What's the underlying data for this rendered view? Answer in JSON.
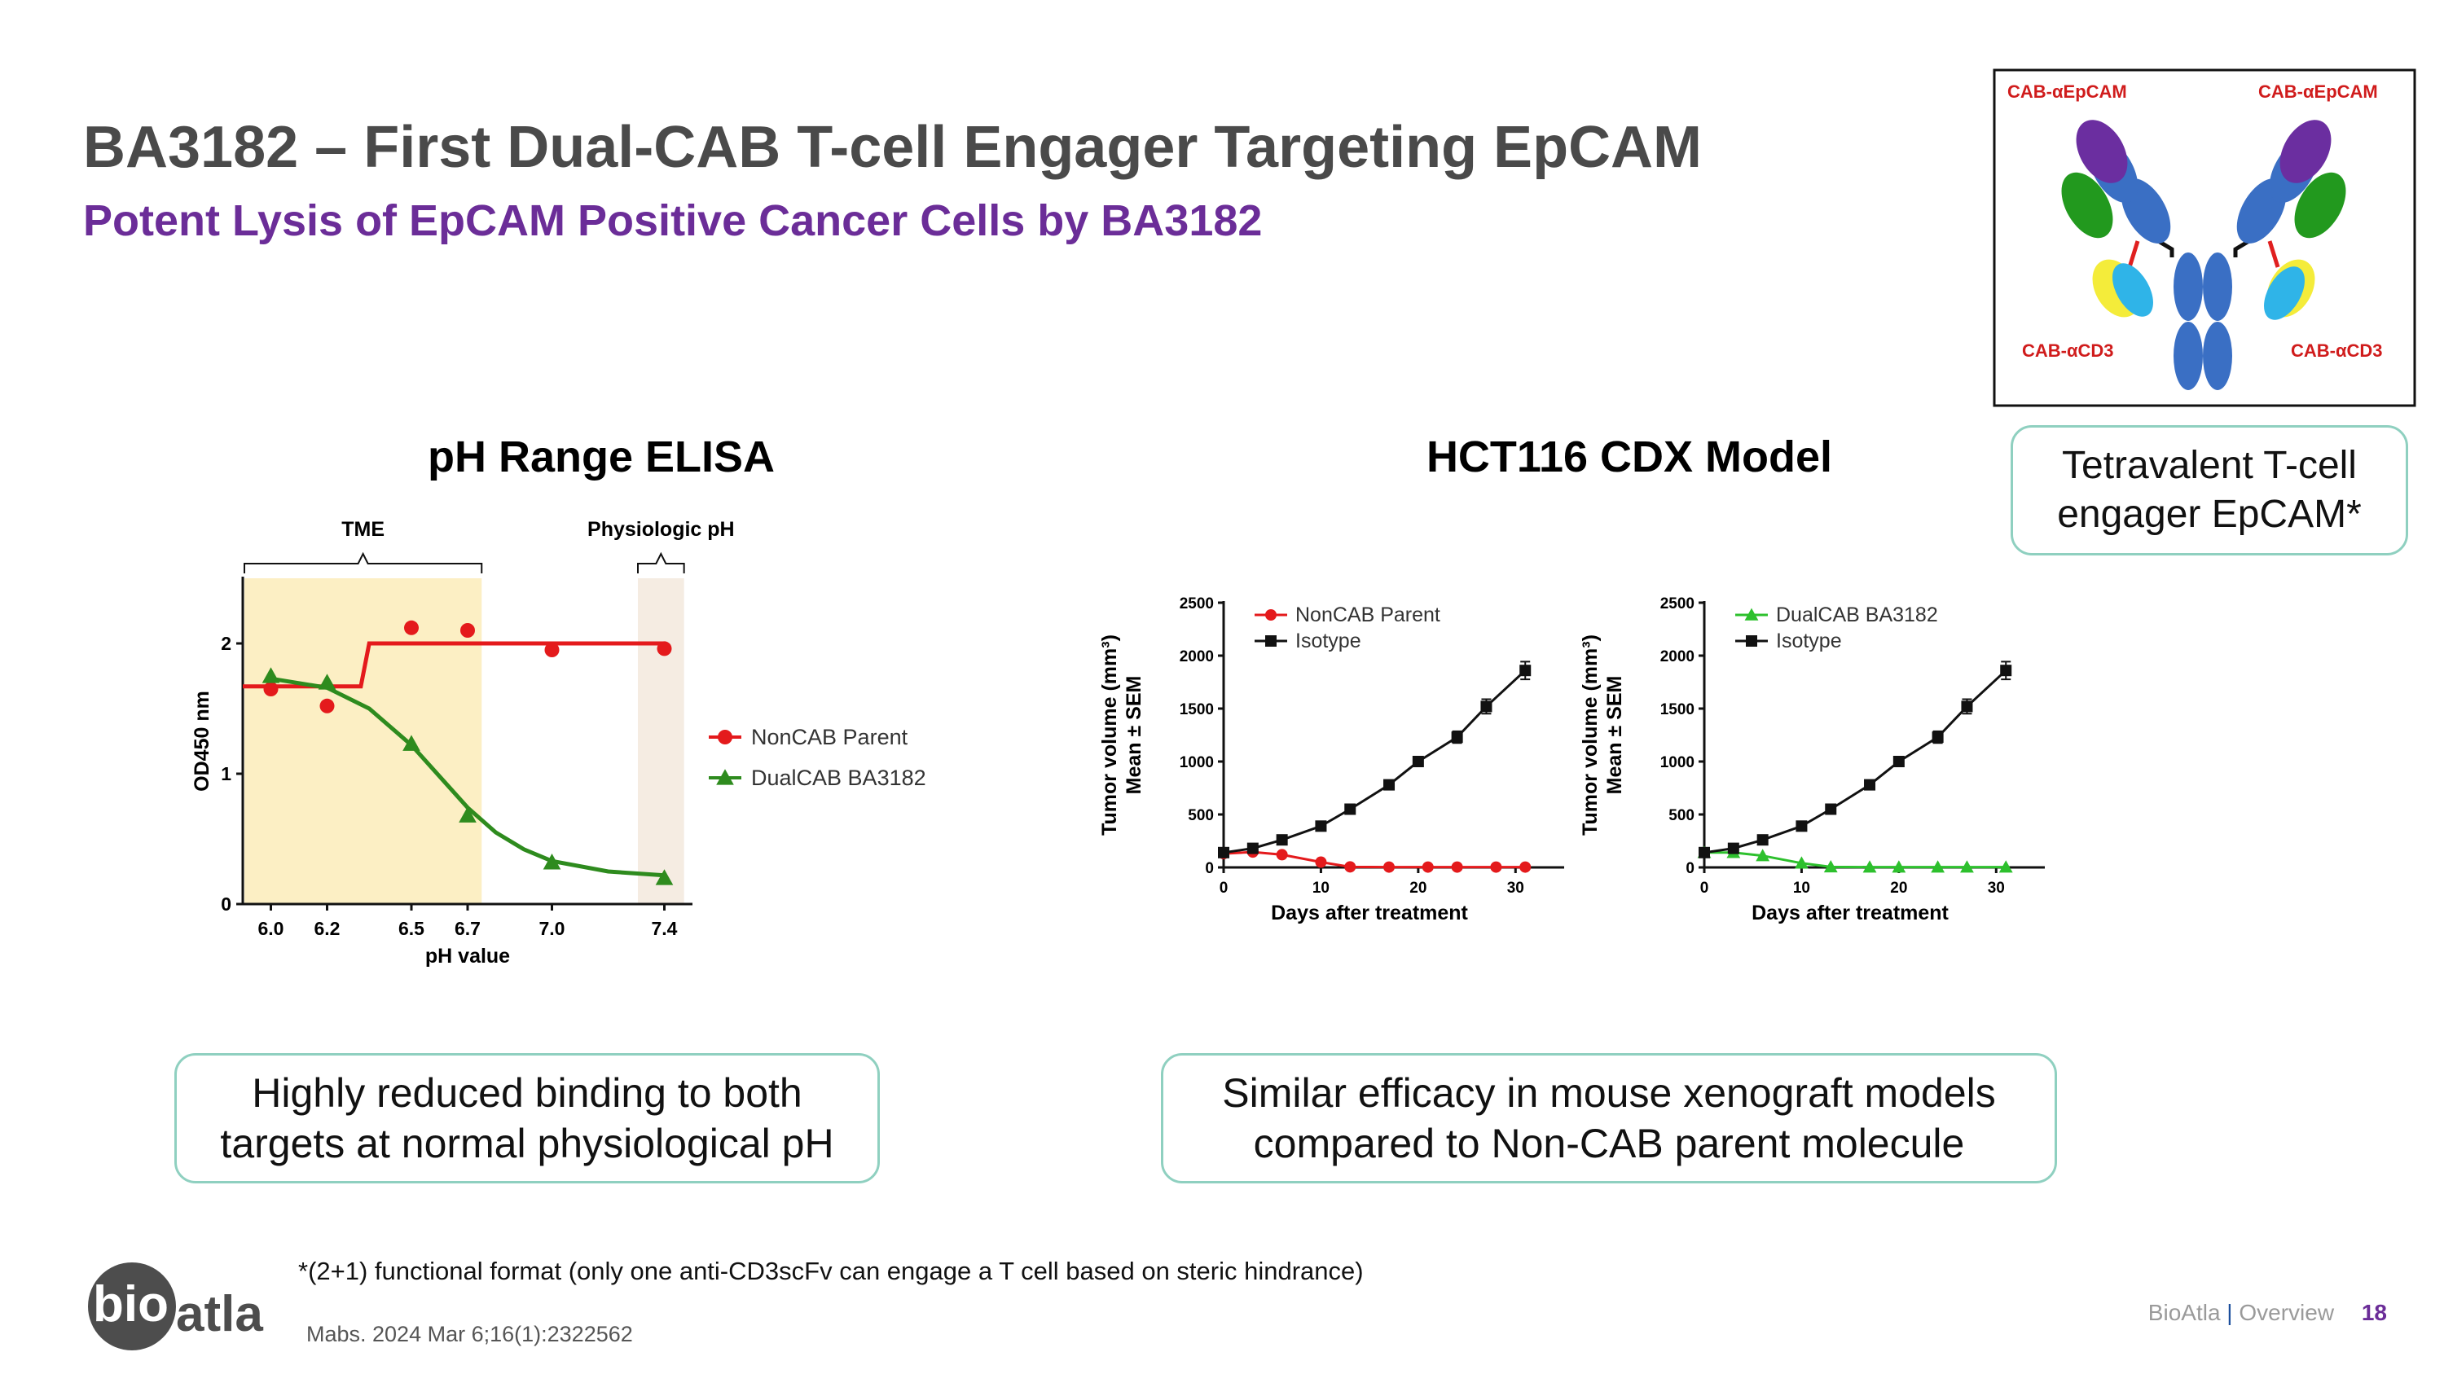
{
  "header": {
    "title": "BA3182 – First Dual-CAB T-cell Engager Targeting EpCAM",
    "subtitle": "Potent Lysis of EpCAM Positive Cancer Cells by BA3182"
  },
  "molecule": {
    "label_top_left": "CAB-αEpCAM",
    "label_top_right": "CAB-αEpCAM",
    "label_bottom_left": "CAB-αCD3",
    "label_bottom_right": "CAB-αCD3",
    "caption": "Tetravalent T-cell engager EpCAM*"
  },
  "sections": {
    "elisa_title": "pH Range ELISA",
    "cdx_title": "HCT116 CDX Model"
  },
  "callouts": {
    "left": [
      "Highly reduced binding to both",
      "targets at normal physiological pH"
    ],
    "right": [
      "Similar efficacy in mouse xenograft models",
      "compared to Non-CAB parent molecule"
    ]
  },
  "footnote": "*(2+1) functional format (only one anti-CD3scFv can engage a T cell based on steric hindrance)",
  "citation": "Mabs. 2024 Mar 6;16(1):2322562",
  "footer": {
    "brand": "BioAtla",
    "separator": "|",
    "section": "Overview",
    "page": "18"
  },
  "logo": {
    "text": "bioatla"
  },
  "colors": {
    "title": "#4a4a4a",
    "subtitle": "#6b2d98",
    "red": "#e41a1c",
    "green": "#2e8b1e",
    "lightgreen": "#2dc02d",
    "black": "#111111",
    "tme": "#fcefc4",
    "physio": "#f5ece2"
  },
  "chart_data": [
    {
      "type": "line",
      "title": "pH Range ELISA",
      "xlabel": "pH value",
      "ylabel": "OD450 nm",
      "xlim": [
        5.9,
        7.5
      ],
      "ylim": [
        0,
        2.5
      ],
      "x_ticks": [
        6.0,
        6.2,
        6.5,
        6.7,
        7.0,
        7.4
      ],
      "x_tick_labels": [
        "6.0",
        "6.2",
        "6.5",
        "6.7",
        "7.0",
        "7.4"
      ],
      "y_ticks": [
        0,
        1,
        2
      ],
      "y_tick_labels": [
        "0",
        "1",
        "2"
      ],
      "regions": [
        {
          "label": "TME",
          "from": 5.9,
          "to": 6.75
        },
        {
          "label": "Physiologic pH",
          "from": 7.3,
          "to": 7.47
        }
      ],
      "series": [
        {
          "name": "NonCAB Parent",
          "marker": "circle",
          "color": "#e41a1c",
          "x": [
            6.0,
            6.2,
            6.5,
            6.7,
            7.0,
            7.4
          ],
          "y": [
            1.65,
            1.52,
            2.12,
            2.1,
            1.95,
            1.96
          ],
          "fit_x": [
            5.9,
            6.32,
            6.35,
            7.4
          ],
          "fit_y": [
            1.67,
            1.67,
            2.0,
            2.0
          ]
        },
        {
          "name": "DualCAB BA3182",
          "marker": "triangle",
          "color": "#2e8b1e",
          "x": [
            6.0,
            6.2,
            6.5,
            6.7,
            7.0,
            7.4
          ],
          "y": [
            1.75,
            1.7,
            1.23,
            0.68,
            0.32,
            0.2
          ],
          "fit_x": [
            6.0,
            6.2,
            6.35,
            6.5,
            6.6,
            6.7,
            6.8,
            6.9,
            7.0,
            7.2,
            7.4
          ],
          "fit_y": [
            1.73,
            1.66,
            1.5,
            1.22,
            0.98,
            0.74,
            0.55,
            0.42,
            0.33,
            0.25,
            0.22
          ]
        }
      ]
    },
    {
      "type": "line",
      "xlabel": "Days after treatment",
      "ylabel": [
        "Tumor volume (mm³)",
        "Mean ± SEM"
      ],
      "xlim": [
        0,
        35
      ],
      "ylim": [
        0,
        2500
      ],
      "x_ticks": [
        0,
        10,
        20,
        30
      ],
      "y_ticks": [
        0,
        500,
        1000,
        1500,
        2000,
        2500
      ],
      "series": [
        {
          "name": "NonCAB Parent",
          "marker": "circle",
          "color": "#e41a1c",
          "x": [
            0,
            3,
            6,
            10,
            13,
            17,
            21,
            24,
            28,
            31
          ],
          "y": [
            130,
            145,
            120,
            50,
            5,
            3,
            3,
            3,
            3,
            3
          ]
        },
        {
          "name": "Isotype",
          "marker": "square",
          "color": "#111111",
          "x": [
            0,
            3,
            6,
            10,
            13,
            17,
            20,
            24,
            27,
            31
          ],
          "y": [
            140,
            180,
            260,
            390,
            550,
            780,
            1000,
            1230,
            1520,
            1860
          ]
        }
      ]
    },
    {
      "type": "line",
      "xlabel": "Days after treatment",
      "ylabel": [
        "Tumor volume (mm³)",
        "Mean ± SEM"
      ],
      "xlim": [
        0,
        35
      ],
      "ylim": [
        0,
        2500
      ],
      "x_ticks": [
        0,
        10,
        20,
        30
      ],
      "y_ticks": [
        0,
        500,
        1000,
        1500,
        2000,
        2500
      ],
      "series": [
        {
          "name": "DualCAB BA3182",
          "marker": "triangle",
          "color": "#2dc02d",
          "x": [
            0,
            3,
            6,
            10,
            13,
            17,
            20,
            24,
            27,
            31
          ],
          "y": [
            140,
            140,
            110,
            40,
            5,
            3,
            3,
            3,
            3,
            3
          ]
        },
        {
          "name": "Isotype",
          "marker": "square",
          "color": "#111111",
          "x": [
            0,
            3,
            6,
            10,
            13,
            17,
            20,
            24,
            27,
            31
          ],
          "y": [
            140,
            180,
            260,
            390,
            550,
            780,
            1000,
            1230,
            1520,
            1860
          ]
        }
      ]
    }
  ]
}
